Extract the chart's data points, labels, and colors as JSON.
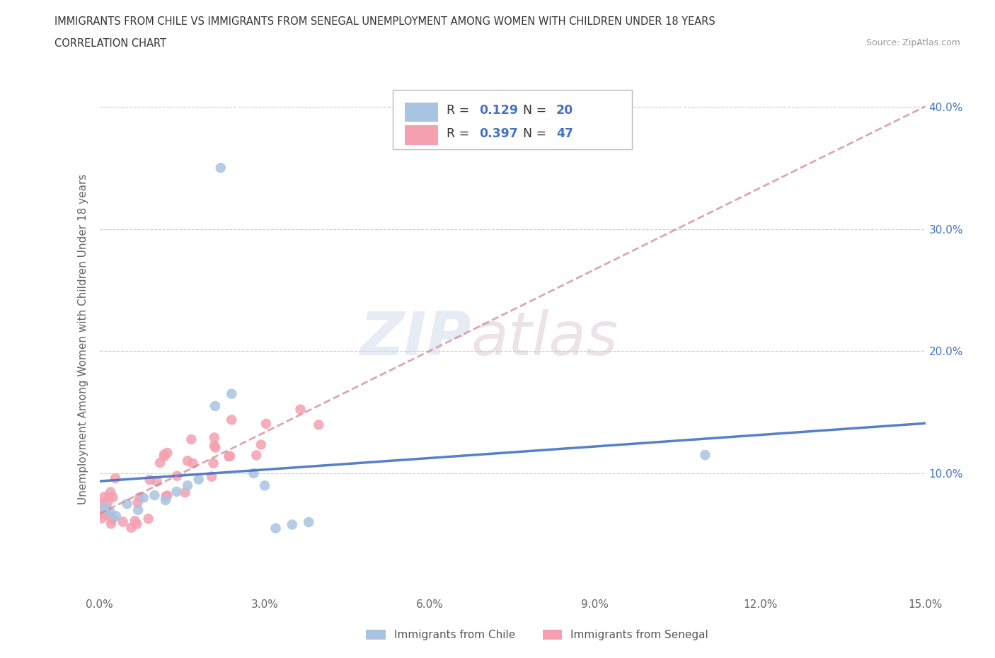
{
  "title_line1": "IMMIGRANTS FROM CHILE VS IMMIGRANTS FROM SENEGAL UNEMPLOYMENT AMONG WOMEN WITH CHILDREN UNDER 18 YEARS",
  "title_line2": "CORRELATION CHART",
  "source_text": "Source: ZipAtlas.com",
  "ylabel": "Unemployment Among Women with Children Under 18 years",
  "xlim": [
    0.0,
    0.15
  ],
  "ylim": [
    0.0,
    0.42
  ],
  "x_tick_vals": [
    0.0,
    0.03,
    0.06,
    0.09,
    0.12,
    0.15
  ],
  "x_tick_labels": [
    "0.0%",
    "3.0%",
    "6.0%",
    "9.0%",
    "12.0%",
    "15.0%"
  ],
  "y_tick_vals": [
    0.0,
    0.1,
    0.2,
    0.3,
    0.4
  ],
  "y_tick_labels": [
    "",
    "10.0%",
    "20.0%",
    "30.0%",
    "40.0%"
  ],
  "chile_color": "#a8c4e0",
  "senegal_color": "#f4a0b0",
  "chile_line_color": "#4472c4",
  "senegal_line_color": "#d08090",
  "chile_R": 0.129,
  "chile_N": 20,
  "senegal_R": 0.397,
  "senegal_N": 47,
  "legend_label_chile": "Immigrants from Chile",
  "legend_label_senegal": "Immigrants from Senegal",
  "watermark_zip": "ZIP",
  "watermark_atlas": "atlas",
  "chile_x": [
    0.001,
    0.002,
    0.003,
    0.004,
    0.005,
    0.007,
    0.009,
    0.011,
    0.013,
    0.015,
    0.017,
    0.019,
    0.021,
    0.024,
    0.027,
    0.03,
    0.032,
    0.035,
    0.11,
    0.023
  ],
  "chile_y": [
    0.072,
    0.068,
    0.075,
    0.065,
    0.078,
    0.082,
    0.09,
    0.085,
    0.095,
    0.09,
    0.1,
    0.095,
    0.155,
    0.16,
    0.17,
    0.09,
    0.095,
    0.06,
    0.115,
    0.35
  ],
  "senegal_x": [
    0.001,
    0.002,
    0.003,
    0.004,
    0.005,
    0.006,
    0.007,
    0.008,
    0.009,
    0.01,
    0.011,
    0.012,
    0.013,
    0.014,
    0.015,
    0.016,
    0.017,
    0.018,
    0.019,
    0.02,
    0.021,
    0.022,
    0.023,
    0.024,
    0.001,
    0.002,
    0.003,
    0.004,
    0.005,
    0.006,
    0.007,
    0.008,
    0.009,
    0.01,
    0.011,
    0.012,
    0.013,
    0.014,
    0.015,
    0.016,
    0.017,
    0.018,
    0.019,
    0.02,
    0.022,
    0.025,
    0.03
  ],
  "senegal_y": [
    0.065,
    0.07,
    0.075,
    0.072,
    0.068,
    0.08,
    0.075,
    0.082,
    0.078,
    0.085,
    0.08,
    0.085,
    0.09,
    0.088,
    0.092,
    0.095,
    0.1,
    0.105,
    0.098,
    0.11,
    0.108,
    0.115,
    0.112,
    0.118,
    0.06,
    0.065,
    0.062,
    0.068,
    0.058,
    0.072,
    0.07,
    0.078,
    0.076,
    0.08,
    0.082,
    0.088,
    0.085,
    0.09,
    0.088,
    0.092,
    0.098,
    0.102,
    0.095,
    0.108,
    0.118,
    0.122,
    0.13
  ]
}
